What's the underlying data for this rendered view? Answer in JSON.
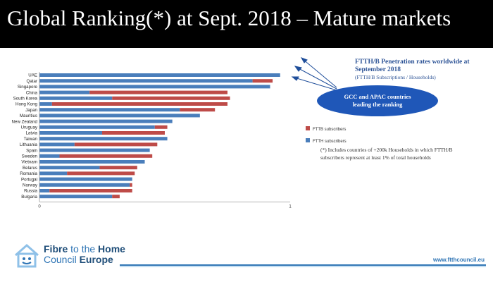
{
  "header": {
    "title": "Global Ranking(*) at Sept. 2018 – Mature markets"
  },
  "chart_data": {
    "type": "bar",
    "orientation": "horizontal",
    "stacked": true,
    "categories": [
      "UAE",
      "Qatar",
      "Singapore",
      "China",
      "South Korea",
      "Hong Kong",
      "Japan",
      "Mauritius",
      "New Zealand",
      "Uruguay",
      "Latvia",
      "Taiwan",
      "Lithuania",
      "Spain",
      "Sweden",
      "Vietnam",
      "Belarus",
      "Romania",
      "Portugal",
      "Norway",
      "Russia",
      "Bulgaria"
    ],
    "series": [
      {
        "name": "FTTH subscribers",
        "values": [
          0.96,
          0.85,
          0.92,
          0.2,
          0.29,
          0.05,
          0.56,
          0.64,
          0.53,
          0.46,
          0.25,
          0.51,
          0.14,
          0.44,
          0.08,
          0.42,
          0.24,
          0.11,
          0.37,
          0.36,
          0.04,
          0.29
        ]
      },
      {
        "name": "FTTB subscribers",
        "values": [
          0.0,
          0.08,
          0.0,
          0.55,
          0.47,
          0.7,
          0.14,
          0.0,
          0.0,
          0.05,
          0.25,
          0.0,
          0.33,
          0.0,
          0.37,
          0.0,
          0.15,
          0.27,
          0.0,
          0.01,
          0.33,
          0.03
        ]
      }
    ],
    "xlim": [
      0,
      1
    ],
    "xticks": [
      "0",
      "1"
    ],
    "legend": "right",
    "colors": {
      "FTTH subscribers": "#4a7ebb",
      "FTTB subscribers": "#be4b48"
    }
  },
  "annotation": {
    "title_line1": "FTTH/B Penetration rates worldwide at",
    "title_line2": "September 2018",
    "subtitle": "(FTTH/B Subscriptions / Households)",
    "callout_line1": "GCC and APAC countries",
    "callout_line2": "leading the ranking",
    "footnote_line1": "(*) Includes countries of +200k Households in which FTTH/B",
    "footnote_line2": "subscribers represent at least 1% of total households"
  },
  "footer": {
    "brand_line1_a": "Fibre",
    "brand_line1_b": "to the",
    "brand_line1_c": "Home",
    "brand_line2_a": "Council",
    "brand_line2_b": "Europe",
    "url": "www.ftthcouncil.eu"
  }
}
